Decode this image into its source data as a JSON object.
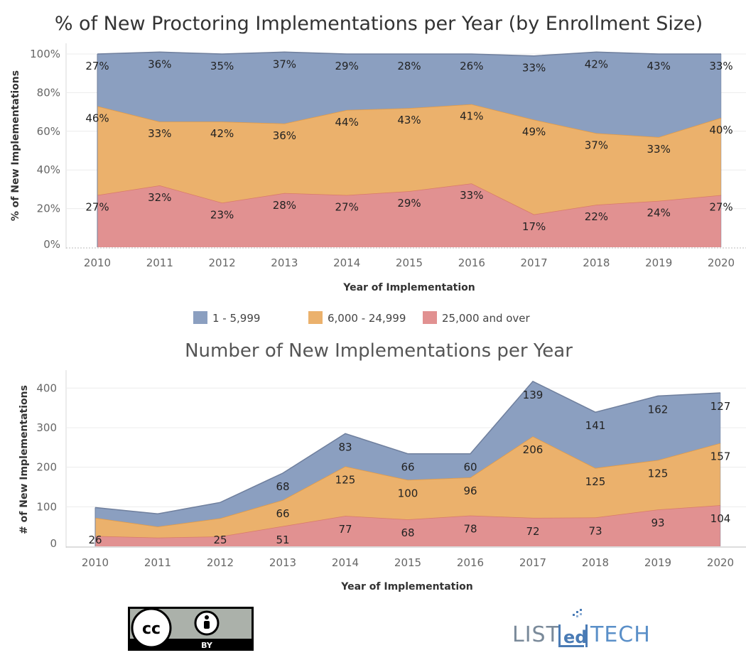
{
  "colors": {
    "small": "#8b9fc0",
    "medium": "#ebb16c",
    "large": "#e19191",
    "small_line": "#6f7f9d",
    "medium_line": "#e39a44",
    "large_line": "#d97a6a"
  },
  "legend": {
    "items": [
      {
        "label": "1 - 5,999",
        "key": "small"
      },
      {
        "label": "6,000 - 24,999",
        "key": "medium"
      },
      {
        "label": "25,000 and over",
        "key": "large"
      }
    ]
  },
  "chart_data": [
    {
      "type": "area",
      "stacked": true,
      "title": "% of New Proctoring Implementations per Year (by Enrollment Size)",
      "xlabel": "Year of Implementation",
      "ylabel": "% of New Implementations",
      "x": [
        2010,
        2011,
        2012,
        2013,
        2014,
        2015,
        2016,
        2017,
        2018,
        2019,
        2020
      ],
      "ylim": [
        0,
        100
      ],
      "yticks": [
        0,
        20,
        40,
        60,
        80,
        100
      ],
      "ytick_labels": [
        "0%",
        "20%",
        "40%",
        "60%",
        "80%",
        "100%"
      ],
      "series": [
        {
          "name": "25,000 and over",
          "key": "large",
          "values": [
            27,
            32,
            23,
            28,
            27,
            29,
            33,
            17,
            22,
            24,
            27
          ],
          "labels": [
            "27%",
            "32%",
            "23%",
            "28%",
            "27%",
            "29%",
            "33%",
            "17%",
            "22%",
            "24%",
            "27%"
          ]
        },
        {
          "name": "6,000 - 24,999",
          "key": "medium",
          "values": [
            46,
            33,
            42,
            36,
            44,
            43,
            41,
            49,
            37,
            33,
            40
          ],
          "labels": [
            "46%",
            "33%",
            "42%",
            "36%",
            "44%",
            "43%",
            "41%",
            "49%",
            "37%",
            "33%",
            "40%"
          ]
        },
        {
          "name": "1 - 5,999",
          "key": "small",
          "values": [
            27,
            36,
            35,
            37,
            29,
            28,
            26,
            33,
            42,
            43,
            33
          ],
          "labels": [
            "27%",
            "36%",
            "35%",
            "37%",
            "29%",
            "28%",
            "26%",
            "33%",
            "42%",
            "43%",
            "33%"
          ]
        }
      ]
    },
    {
      "type": "area",
      "stacked": true,
      "title": "Number of New Implementations per Year",
      "xlabel": "Year of Implementation",
      "ylabel": "# of New Implementations",
      "x": [
        2010,
        2011,
        2012,
        2013,
        2014,
        2015,
        2016,
        2017,
        2018,
        2019,
        2020
      ],
      "ylim": [
        0,
        440
      ],
      "yticks": [
        0,
        100,
        200,
        300,
        400
      ],
      "ytick_labels": [
        "0",
        "100",
        "200",
        "300",
        "400"
      ],
      "series": [
        {
          "name": "25,000 and over",
          "key": "large",
          "values": [
            26,
            22,
            25,
            51,
            77,
            68,
            78,
            72,
            73,
            93,
            104
          ],
          "labels": [
            "26",
            "",
            "25",
            "51",
            "77",
            "68",
            "78",
            "72",
            "73",
            "93",
            "104"
          ]
        },
        {
          "name": "6,000 - 24,999",
          "key": "medium",
          "values": [
            46,
            28,
            46,
            66,
            125,
            100,
            96,
            206,
            125,
            125,
            157
          ],
          "labels": [
            "",
            "",
            "",
            "66",
            "125",
            "100",
            "96",
            "206",
            "125",
            "125",
            "157"
          ]
        },
        {
          "name": "1 - 5,999",
          "key": "small",
          "values": [
            26,
            32,
            40,
            68,
            83,
            66,
            60,
            139,
            141,
            162,
            127
          ],
          "labels": [
            "",
            "",
            "",
            "68",
            "83",
            "66",
            "60",
            "139",
            "141",
            "162",
            "127"
          ]
        }
      ]
    }
  ],
  "badges": {
    "license_text": "BY",
    "brand": "LISTedTECH"
  }
}
